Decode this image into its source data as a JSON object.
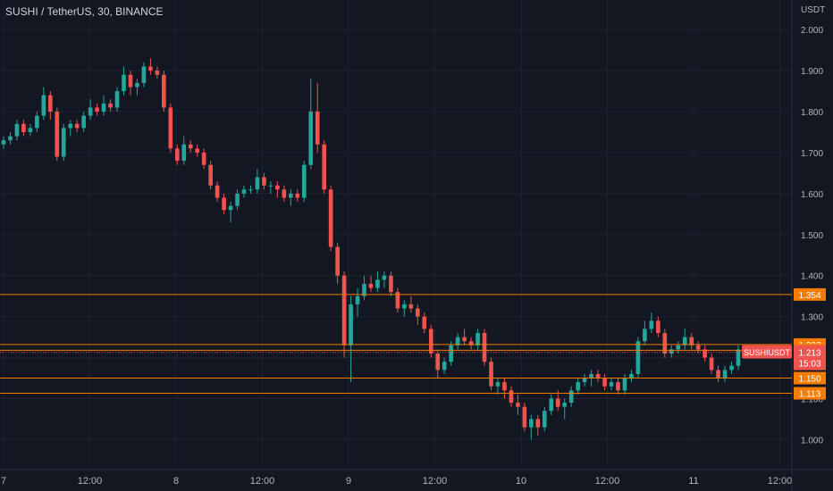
{
  "header": {
    "title": "SUSHI / TetherUS, 30, BINANCE"
  },
  "chart_data": {
    "type": "candlestick",
    "title": "SUSHI / TetherUS, 30, BINANCE",
    "yunit": "USDT",
    "ylim": [
      0.94,
      2.02
    ],
    "y_ticks": [
      "2.000",
      "1.900",
      "1.800",
      "1.700",
      "1.600",
      "1.500",
      "1.400",
      "1.300",
      "1.200",
      "1.100",
      "1.000"
    ],
    "x_ticks": [
      "7",
      "12:00",
      "8",
      "12:00",
      "9",
      "12:00",
      "10",
      "12:00",
      "11",
      "12:00"
    ],
    "horizontal_levels": [
      {
        "label": "1.354",
        "value": 1.354,
        "color": "#f57c00"
      },
      {
        "label": "1.232",
        "value": 1.232,
        "color": "#f57c00"
      },
      {
        "label": "1.218",
        "value": 1.218,
        "color": "#f57c00"
      },
      {
        "label": "1.150",
        "value": 1.15,
        "color": "#f57c00"
      },
      {
        "label": "1.113",
        "value": 1.113,
        "color": "#f57c00"
      }
    ],
    "last_price": {
      "symbol": "SUSHIUSDT",
      "value": 1.213,
      "label": "1.213",
      "countdown": "15:03"
    },
    "colors": {
      "up": "#26a69a",
      "down": "#ef5350",
      "background": "#131722",
      "grid": "#1e222d",
      "text": "#b2b5be"
    },
    "ohlc_approx": [
      [
        1.72,
        1.74,
        1.71,
        1.73
      ],
      [
        1.73,
        1.75,
        1.72,
        1.74
      ],
      [
        1.74,
        1.78,
        1.73,
        1.77
      ],
      [
        1.77,
        1.78,
        1.74,
        1.75
      ],
      [
        1.75,
        1.77,
        1.74,
        1.76
      ],
      [
        1.76,
        1.8,
        1.75,
        1.79
      ],
      [
        1.79,
        1.86,
        1.78,
        1.84
      ],
      [
        1.84,
        1.85,
        1.78,
        1.8
      ],
      [
        1.8,
        1.81,
        1.68,
        1.69
      ],
      [
        1.69,
        1.77,
        1.68,
        1.76
      ],
      [
        1.76,
        1.78,
        1.74,
        1.77
      ],
      [
        1.77,
        1.78,
        1.75,
        1.76
      ],
      [
        1.76,
        1.8,
        1.75,
        1.79
      ],
      [
        1.79,
        1.83,
        1.78,
        1.81
      ],
      [
        1.81,
        1.82,
        1.79,
        1.8
      ],
      [
        1.8,
        1.84,
        1.79,
        1.82
      ],
      [
        1.82,
        1.83,
        1.8,
        1.81
      ],
      [
        1.81,
        1.86,
        1.8,
        1.85
      ],
      [
        1.85,
        1.91,
        1.84,
        1.89
      ],
      [
        1.89,
        1.9,
        1.84,
        1.86
      ],
      [
        1.86,
        1.88,
        1.84,
        1.87
      ],
      [
        1.87,
        1.92,
        1.86,
        1.91
      ],
      [
        1.91,
        1.93,
        1.89,
        1.9
      ],
      [
        1.9,
        1.91,
        1.88,
        1.89
      ],
      [
        1.89,
        1.9,
        1.8,
        1.81
      ],
      [
        1.81,
        1.82,
        1.7,
        1.71
      ],
      [
        1.71,
        1.72,
        1.67,
        1.68
      ],
      [
        1.68,
        1.74,
        1.67,
        1.72
      ],
      [
        1.72,
        1.73,
        1.7,
        1.71
      ],
      [
        1.71,
        1.72,
        1.69,
        1.7
      ],
      [
        1.7,
        1.71,
        1.66,
        1.67
      ],
      [
        1.67,
        1.68,
        1.61,
        1.62
      ],
      [
        1.62,
        1.63,
        1.58,
        1.59
      ],
      [
        1.59,
        1.6,
        1.55,
        1.56
      ],
      [
        1.56,
        1.58,
        1.53,
        1.57
      ],
      [
        1.57,
        1.61,
        1.56,
        1.6
      ],
      [
        1.6,
        1.62,
        1.59,
        1.61
      ],
      [
        1.61,
        1.62,
        1.6,
        1.61
      ],
      [
        1.61,
        1.66,
        1.6,
        1.64
      ],
      [
        1.64,
        1.65,
        1.61,
        1.62
      ],
      [
        1.62,
        1.63,
        1.6,
        1.62
      ],
      [
        1.62,
        1.63,
        1.59,
        1.61
      ],
      [
        1.61,
        1.62,
        1.58,
        1.59
      ],
      [
        1.59,
        1.61,
        1.57,
        1.6
      ],
      [
        1.6,
        1.61,
        1.58,
        1.59
      ],
      [
        1.59,
        1.68,
        1.58,
        1.67
      ],
      [
        1.67,
        1.88,
        1.66,
        1.8
      ],
      [
        1.8,
        1.87,
        1.7,
        1.72
      ],
      [
        1.72,
        1.73,
        1.6,
        1.61
      ],
      [
        1.61,
        1.62,
        1.46,
        1.47
      ],
      [
        1.47,
        1.48,
        1.38,
        1.4
      ],
      [
        1.4,
        1.41,
        1.2,
        1.23
      ],
      [
        1.23,
        1.35,
        1.14,
        1.33
      ],
      [
        1.33,
        1.37,
        1.3,
        1.35
      ],
      [
        1.35,
        1.4,
        1.34,
        1.38
      ],
      [
        1.38,
        1.4,
        1.36,
        1.37
      ],
      [
        1.37,
        1.41,
        1.36,
        1.39
      ],
      [
        1.39,
        1.41,
        1.37,
        1.4
      ],
      [
        1.4,
        1.41,
        1.35,
        1.36
      ],
      [
        1.36,
        1.37,
        1.31,
        1.32
      ],
      [
        1.32,
        1.34,
        1.3,
        1.33
      ],
      [
        1.33,
        1.35,
        1.31,
        1.32
      ],
      [
        1.32,
        1.33,
        1.28,
        1.3
      ],
      [
        1.3,
        1.31,
        1.26,
        1.27
      ],
      [
        1.27,
        1.28,
        1.2,
        1.21
      ],
      [
        1.21,
        1.22,
        1.15,
        1.17
      ],
      [
        1.17,
        1.2,
        1.16,
        1.19
      ],
      [
        1.19,
        1.24,
        1.18,
        1.23
      ],
      [
        1.23,
        1.26,
        1.22,
        1.25
      ],
      [
        1.25,
        1.27,
        1.23,
        1.24
      ],
      [
        1.24,
        1.25,
        1.22,
        1.23
      ],
      [
        1.23,
        1.27,
        1.22,
        1.26
      ],
      [
        1.26,
        1.27,
        1.18,
        1.19
      ],
      [
        1.19,
        1.2,
        1.12,
        1.13
      ],
      [
        1.13,
        1.15,
        1.11,
        1.14
      ],
      [
        1.14,
        1.15,
        1.1,
        1.12
      ],
      [
        1.12,
        1.13,
        1.08,
        1.09
      ],
      [
        1.09,
        1.11,
        1.06,
        1.08
      ],
      [
        1.08,
        1.09,
        1.02,
        1.03
      ],
      [
        1.03,
        1.06,
        1.0,
        1.05
      ],
      [
        1.05,
        1.06,
        1.01,
        1.03
      ],
      [
        1.03,
        1.08,
        1.02,
        1.07
      ],
      [
        1.07,
        1.11,
        1.06,
        1.1
      ],
      [
        1.1,
        1.12,
        1.07,
        1.08
      ],
      [
        1.08,
        1.1,
        1.05,
        1.09
      ],
      [
        1.09,
        1.13,
        1.08,
        1.12
      ],
      [
        1.12,
        1.15,
        1.11,
        1.14
      ],
      [
        1.14,
        1.16,
        1.13,
        1.15
      ],
      [
        1.15,
        1.17,
        1.13,
        1.16
      ],
      [
        1.16,
        1.17,
        1.14,
        1.15
      ],
      [
        1.15,
        1.16,
        1.12,
        1.13
      ],
      [
        1.13,
        1.15,
        1.12,
        1.14
      ],
      [
        1.14,
        1.15,
        1.11,
        1.12
      ],
      [
        1.12,
        1.16,
        1.11,
        1.15
      ],
      [
        1.15,
        1.17,
        1.14,
        1.16
      ],
      [
        1.16,
        1.25,
        1.15,
        1.24
      ],
      [
        1.24,
        1.29,
        1.23,
        1.27
      ],
      [
        1.27,
        1.31,
        1.26,
        1.29
      ],
      [
        1.29,
        1.3,
        1.25,
        1.26
      ],
      [
        1.26,
        1.27,
        1.2,
        1.21
      ],
      [
        1.21,
        1.23,
        1.2,
        1.22
      ],
      [
        1.22,
        1.24,
        1.21,
        1.23
      ],
      [
        1.23,
        1.27,
        1.22,
        1.25
      ],
      [
        1.25,
        1.26,
        1.22,
        1.23
      ],
      [
        1.23,
        1.24,
        1.21,
        1.22
      ],
      [
        1.22,
        1.23,
        1.19,
        1.2
      ],
      [
        1.2,
        1.21,
        1.16,
        1.17
      ],
      [
        1.17,
        1.18,
        1.14,
        1.15
      ],
      [
        1.15,
        1.18,
        1.14,
        1.17
      ],
      [
        1.17,
        1.19,
        1.16,
        1.18
      ],
      [
        1.18,
        1.23,
        1.17,
        1.22
      ]
    ]
  }
}
